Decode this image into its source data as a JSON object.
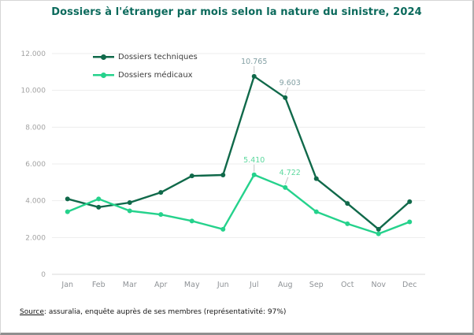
{
  "chart_data": {
    "type": "line",
    "title": "Dossiers à l'étranger par mois selon la nature du sinistre, 2024",
    "categories": [
      "Jan",
      "Feb",
      "Mar",
      "Apr",
      "May",
      "Jun",
      "Jul",
      "Aug",
      "Sep",
      "Oct",
      "Nov",
      "Dec"
    ],
    "series": [
      {
        "name": "Dossiers techniques",
        "color": "#10694a",
        "label_color": "#83a0a4",
        "values": [
          4100,
          3650,
          3900,
          4450,
          5350,
          5400,
          10765,
          9603,
          5200,
          3850,
          2450,
          3950
        ]
      },
      {
        "name": "Dossiers médicaux",
        "color": "#25d28c",
        "label_color": "#5cd89e",
        "values": [
          3400,
          4100,
          3450,
          3250,
          2900,
          2450,
          5410,
          4722,
          3400,
          2750,
          2200,
          2850
        ]
      }
    ],
    "point_labels": [
      {
        "series": 0,
        "index": 6,
        "text": "10.765"
      },
      {
        "series": 0,
        "index": 7,
        "text": "9.603"
      },
      {
        "series": 1,
        "index": 6,
        "text": "5.410"
      },
      {
        "series": 1,
        "index": 7,
        "text": "4.722"
      }
    ],
    "ylim": [
      0,
      12000
    ],
    "ytick_step": 2000,
    "ytick_labels": [
      "0",
      "2.000",
      "4.000",
      "6.000",
      "8.000",
      "10.000",
      "12.000"
    ],
    "grid": true,
    "legend_position": "top-left-inside"
  },
  "footer": {
    "source_label": "Source",
    "source_text": ": assuralia, enquête auprès de ses membres (représentativité: 97%)"
  },
  "colors": {
    "title": "#0b6a5c",
    "gridline": "#ededed",
    "axis_line": "#d8d8d8",
    "leader_line": "#c2c2c2"
  }
}
